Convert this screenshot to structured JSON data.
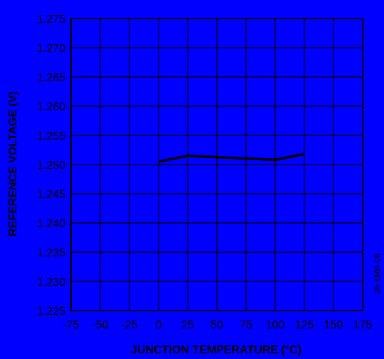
{
  "chart_data": {
    "type": "line",
    "title": "",
    "xlabel": "JUNCTION TEMPERATURE (°C)",
    "ylabel": "REFERENCE VOLTAGE (V)",
    "xlim": [
      -75,
      175
    ],
    "ylim": [
      1.225,
      1.275
    ],
    "x_ticks": [
      -75,
      -50,
      -25,
      0,
      25,
      50,
      75,
      100,
      125,
      150,
      175
    ],
    "y_ticks": [
      1.225,
      1.23,
      1.235,
      1.24,
      1.245,
      1.25,
      1.255,
      1.26,
      1.265,
      1.27,
      1.275
    ],
    "x_tick_labels": [
      "-75",
      "-50",
      "-25",
      "0",
      "25",
      "50",
      "75",
      "100",
      "125",
      "150",
      "175"
    ],
    "y_tick_labels": [
      "1.225",
      "1.230",
      "1.235",
      "1.240",
      "1.245",
      "1.250",
      "1.255",
      "1.260",
      "1.265",
      "1.270",
      "1.275"
    ],
    "grid": true,
    "series": [
      {
        "x": [
          0,
          25,
          100,
          125
        ],
        "y": [
          1.2505,
          1.2515,
          1.2508,
          1.2518
        ]
      }
    ],
    "line_color": "#000000",
    "background_color": "#0000ff",
    "grid_color": "#000000"
  },
  "figure_id": "05-1565-05"
}
